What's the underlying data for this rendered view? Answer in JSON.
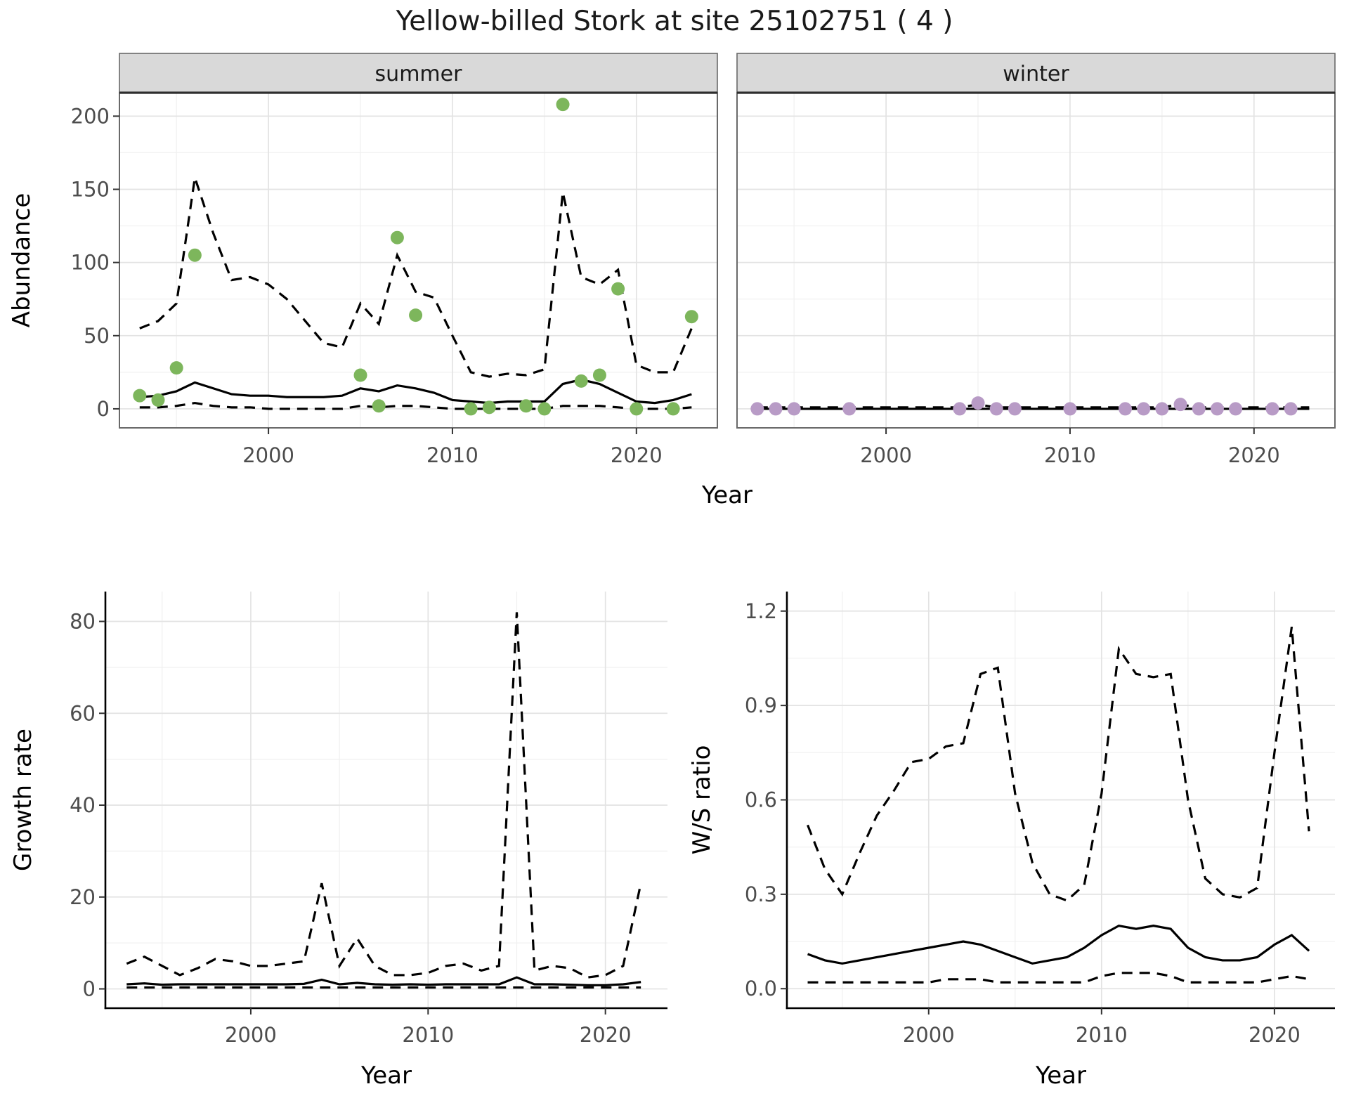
{
  "title": "Yellow-billed Stork at site 25102751 ( 4 )",
  "colors": {
    "line": "#000000",
    "summer_points": "#7DB65C",
    "winter_points": "#B89BC6",
    "strip_bg": "#d9d9d9",
    "strip_divider": "#2e2e2e",
    "panel_border": "#696969",
    "grid_major": "#e3e3e3",
    "grid_minor": "#f0f0f0",
    "tick_color": "#333333"
  },
  "chart_data": [
    {
      "id": "abundance",
      "container": "abundance-chart",
      "type": "line",
      "xlabel": "Year",
      "ylabel": "Abundance",
      "xlim": [
        1991.9,
        2024.4
      ],
      "ylim": [
        -13,
        216
      ],
      "xticks": [
        2000,
        2010,
        2020
      ],
      "xticklabels": [
        "2000",
        "2010",
        "2020"
      ],
      "xminor": [
        1995,
        2005,
        2015
      ],
      "yticks": [
        0,
        50,
        100,
        150,
        200
      ],
      "yticklabels": [
        "0",
        "50",
        "100",
        "150",
        "200"
      ],
      "yminor": [
        25,
        75,
        125,
        175
      ],
      "x": [
        1993,
        1994,
        1995,
        1996,
        1997,
        1998,
        1999,
        2000,
        2001,
        2002,
        2003,
        2004,
        2005,
        2006,
        2007,
        2008,
        2009,
        2010,
        2011,
        2012,
        2013,
        2014,
        2015,
        2016,
        2017,
        2018,
        2019,
        2020,
        2021,
        2022,
        2023
      ],
      "facets": [
        {
          "label": "summer",
          "point_color": "#7DB65C",
          "lines": [
            {
              "name": "median",
              "dash": false,
              "y": [
                8,
                9,
                12,
                18,
                14,
                10,
                9,
                9,
                8,
                8,
                8,
                9,
                14,
                12,
                16,
                14,
                11,
                6,
                5,
                4,
                5,
                5,
                5,
                17,
                20,
                17,
                11,
                5,
                4,
                6,
                10
              ]
            },
            {
              "name": "upper-ci",
              "dash": true,
              "y": [
                55,
                60,
                72,
                158,
                120,
                88,
                90,
                85,
                75,
                60,
                45,
                42,
                72,
                58,
                105,
                80,
                76,
                50,
                25,
                22,
                24,
                23,
                27,
                148,
                90,
                85,
                95,
                30,
                25,
                25,
                55
              ]
            },
            {
              "name": "lower-ci",
              "dash": true,
              "y": [
                1,
                1,
                2,
                4,
                2,
                1,
                1,
                0,
                0,
                0,
                0,
                0,
                2,
                1,
                2,
                2,
                1,
                0,
                0,
                0,
                0,
                0,
                0,
                2,
                2,
                2,
                1,
                0,
                0,
                0,
                1
              ]
            }
          ],
          "points": {
            "x": [
              1993,
              1994,
              1995,
              1996,
              2005,
              2006,
              2007,
              2008,
              2011,
              2012,
              2014,
              2015,
              2016,
              2017,
              2018,
              2019,
              2020,
              2022,
              2023
            ],
            "y": [
              9,
              6,
              28,
              105,
              23,
              2,
              117,
              64,
              0,
              1,
              2,
              0,
              208,
              19,
              23,
              82,
              0,
              0,
              63
            ]
          }
        },
        {
          "label": "winter",
          "point_color": "#B89BC6",
          "lines": [
            {
              "name": "median",
              "dash": false,
              "y": [
                0,
                0,
                0,
                0,
                0,
                0,
                0,
                0,
                0,
                0,
                0,
                0,
                0,
                0,
                0,
                0,
                0,
                0,
                0,
                0,
                0,
                0,
                0,
                0,
                0,
                0,
                0,
                0,
                0,
                0,
                0
              ]
            },
            {
              "name": "upper-ci",
              "dash": true,
              "y": [
                1,
                1,
                1,
                1,
                1,
                1,
                1,
                1,
                1,
                1,
                1,
                1,
                3,
                1,
                1,
                1,
                1,
                1,
                1,
                1,
                1,
                1,
                1,
                3,
                1,
                1,
                1,
                1,
                1,
                1,
                1
              ]
            },
            {
              "name": "lower-ci",
              "dash": true,
              "y": [
                0,
                0,
                0,
                0,
                0,
                0,
                0,
                0,
                0,
                0,
                0,
                0,
                0,
                0,
                0,
                0,
                0,
                0,
                0,
                0,
                0,
                0,
                0,
                0,
                0,
                0,
                0,
                0,
                0,
                0,
                0
              ]
            }
          ],
          "points": {
            "x": [
              1993,
              1994,
              1995,
              1998,
              2004,
              2005,
              2006,
              2007,
              2010,
              2013,
              2014,
              2015,
              2016,
              2017,
              2018,
              2019,
              2021,
              2022
            ],
            "y": [
              0,
              0,
              0,
              0,
              0,
              4,
              0,
              0,
              0,
              0,
              0,
              0,
              3,
              0,
              0,
              0,
              0,
              0
            ]
          }
        }
      ]
    },
    {
      "id": "growth_rate",
      "container": "growth-rate-chart",
      "type": "line",
      "xlabel": "Year",
      "ylabel": "Growth rate",
      "xlim": [
        1991.8,
        2023.5
      ],
      "ylim": [
        -4.2,
        86.5
      ],
      "xticks": [
        2000,
        2010,
        2020
      ],
      "xticklabels": [
        "2000",
        "2010",
        "2020"
      ],
      "xminor": [
        1995,
        2005,
        2015
      ],
      "yticks": [
        0,
        20,
        40,
        60,
        80
      ],
      "yticklabels": [
        "0",
        "20",
        "40",
        "60",
        "80"
      ],
      "yminor": [
        10,
        30,
        50,
        70
      ],
      "x": [
        1993,
        1994,
        1995,
        1996,
        1997,
        1998,
        1999,
        2000,
        2001,
        2002,
        2003,
        2004,
        2005,
        2006,
        2007,
        2008,
        2009,
        2010,
        2011,
        2012,
        2013,
        2014,
        2015,
        2016,
        2017,
        2018,
        2019,
        2020,
        2021,
        2022
      ],
      "facets": [
        {
          "label": "",
          "lines": [
            {
              "name": "median",
              "dash": false,
              "y": [
                1,
                1.2,
                0.9,
                1,
                1,
                1,
                1,
                1,
                1,
                1,
                1.1,
                2,
                1,
                1.3,
                1,
                0.9,
                1,
                0.9,
                1,
                1,
                1,
                1,
                2.5,
                1,
                1,
                0.9,
                0.8,
                0.8,
                1,
                1.5
              ]
            },
            {
              "name": "upper-ci",
              "dash": true,
              "y": [
                5.5,
                7,
                5,
                3,
                4.5,
                6.5,
                6,
                5,
                5,
                5.5,
                6,
                23,
                5,
                11,
                5,
                3,
                3,
                3.5,
                5,
                5.5,
                4,
                5,
                82,
                4,
                5,
                4.5,
                2.5,
                3,
                5,
                23
              ]
            },
            {
              "name": "lower-ci",
              "dash": true,
              "y": [
                0.3,
                0.3,
                0.3,
                0.3,
                0.3,
                0.3,
                0.3,
                0.3,
                0.3,
                0.3,
                0.3,
                0.3,
                0.3,
                0.3,
                0.3,
                0.3,
                0.3,
                0.3,
                0.3,
                0.3,
                0.3,
                0.3,
                0.3,
                0.3,
                0.3,
                0.3,
                0.3,
                0.3,
                0.3,
                0.3
              ]
            }
          ]
        }
      ]
    },
    {
      "id": "ws_ratio",
      "container": "ws-ratio-chart",
      "type": "line",
      "xlabel": "Year",
      "ylabel": "W/S ratio",
      "xlim": [
        1991.8,
        2023.5
      ],
      "ylim": [
        -0.062,
        1.262
      ],
      "xticks": [
        2000,
        2010,
        2020
      ],
      "xticklabels": [
        "2000",
        "2010",
        "2020"
      ],
      "xminor": [
        1995,
        2005,
        2015
      ],
      "yticks": [
        0.0,
        0.3,
        0.6,
        0.9,
        1.2
      ],
      "yticklabels": [
        "0.0",
        "0.3",
        "0.6",
        "0.9",
        "1.2"
      ],
      "yminor": [
        0.15,
        0.45,
        0.75,
        1.05
      ],
      "x": [
        1993,
        1994,
        1995,
        1996,
        1997,
        1998,
        1999,
        2000,
        2001,
        2002,
        2003,
        2004,
        2005,
        2006,
        2007,
        2008,
        2009,
        2010,
        2011,
        2012,
        2013,
        2014,
        2015,
        2016,
        2017,
        2018,
        2019,
        2020,
        2021,
        2022
      ],
      "facets": [
        {
          "label": "",
          "lines": [
            {
              "name": "median",
              "dash": false,
              "y": [
                0.11,
                0.09,
                0.08,
                0.09,
                0.1,
                0.11,
                0.12,
                0.13,
                0.14,
                0.15,
                0.14,
                0.12,
                0.1,
                0.08,
                0.09,
                0.1,
                0.13,
                0.17,
                0.2,
                0.19,
                0.2,
                0.19,
                0.13,
                0.1,
                0.09,
                0.09,
                0.1,
                0.14,
                0.17,
                0.12
              ]
            },
            {
              "name": "upper-ci",
              "dash": true,
              "y": [
                0.52,
                0.38,
                0.3,
                0.43,
                0.55,
                0.63,
                0.72,
                0.73,
                0.77,
                0.78,
                1.0,
                1.02,
                0.62,
                0.4,
                0.3,
                0.28,
                0.33,
                0.62,
                1.08,
                1.0,
                0.99,
                1.0,
                0.6,
                0.35,
                0.3,
                0.29,
                0.32,
                0.75,
                1.15,
                0.5
              ]
            },
            {
              "name": "lower-ci",
              "dash": true,
              "y": [
                0.02,
                0.02,
                0.02,
                0.02,
                0.02,
                0.02,
                0.02,
                0.02,
                0.03,
                0.03,
                0.03,
                0.02,
                0.02,
                0.02,
                0.02,
                0.02,
                0.02,
                0.04,
                0.05,
                0.05,
                0.05,
                0.04,
                0.02,
                0.02,
                0.02,
                0.02,
                0.02,
                0.03,
                0.04,
                0.03
              ]
            }
          ]
        }
      ]
    }
  ]
}
